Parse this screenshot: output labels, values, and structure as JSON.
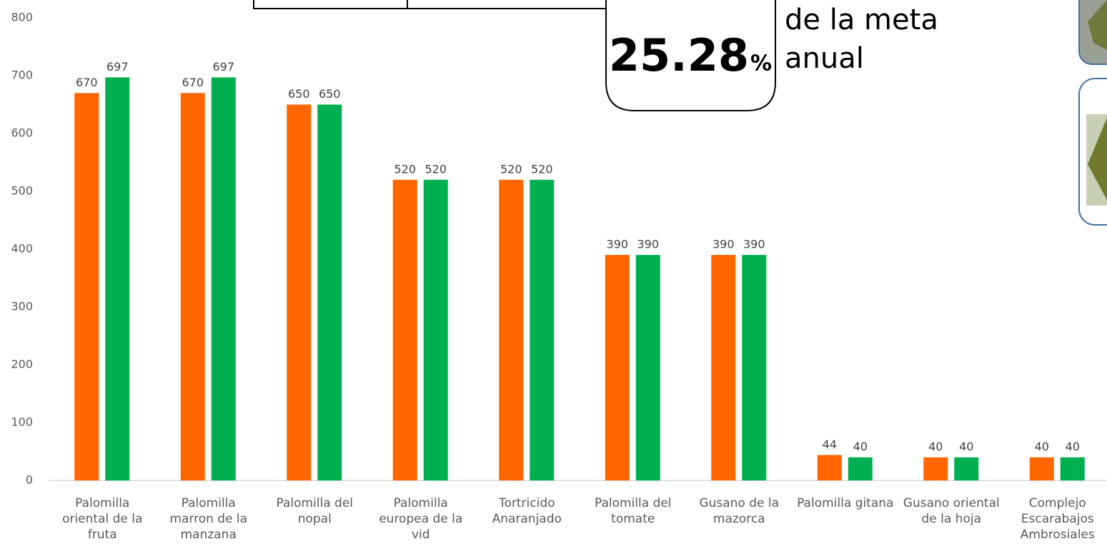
{
  "chart_data": {
    "type": "bar",
    "categories": [
      "Palomilla oriental de la fruta",
      "Palomilla marron de la manzana",
      "Palomilla del nopal",
      "Palomilla europea de la vid",
      "Tortricido Anaranjado",
      "Palomilla del tomate",
      "Gusano de la mazorca",
      "Palomilla gitana",
      "Gusano oriental de la hoja",
      "Complejo Escarabajos Ambrosiales"
    ],
    "series": [
      {
        "color": "#ff6600",
        "values": [
          670,
          670,
          650,
          520,
          520,
          390,
          390,
          44,
          40,
          40
        ]
      },
      {
        "color": "#00b050",
        "values": [
          697,
          697,
          650,
          520,
          520,
          390,
          390,
          40,
          40,
          40
        ]
      }
    ],
    "ylim": [
      0,
      800
    ],
    "yticks": [
      0,
      100,
      200,
      300,
      400,
      500,
      600,
      700,
      800
    ],
    "grid": false,
    "annotations": {
      "percent": "25.28",
      "percent_unit": "%",
      "goal_line1": "de la meta",
      "goal_line2": "anual"
    }
  }
}
